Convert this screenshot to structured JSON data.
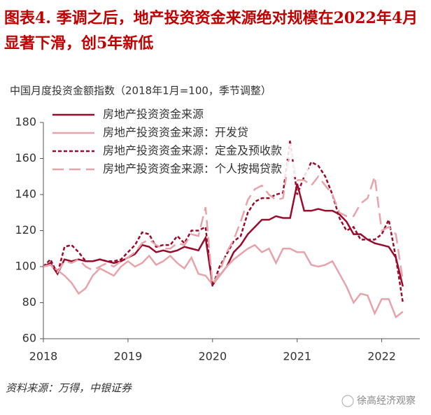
{
  "chart_data": {
    "type": "line",
    "title": "图表4.  季调之后，地产投资资金来源绝对规模在2022年4月显著下滑，创5年新低",
    "subtitle": "中国月度投资金额指数（2018年1月=100，季节调整）",
    "source": "资料来源：万得，中银证券",
    "watermark": "徐高经济观察",
    "legend": "upper left",
    "x": [
      2018.0,
      2018.083,
      2018.167,
      2018.25,
      2018.333,
      2018.417,
      2018.5,
      2018.583,
      2018.667,
      2018.75,
      2018.833,
      2018.917,
      2019.0,
      2019.083,
      2019.167,
      2019.25,
      2019.333,
      2019.417,
      2019.5,
      2019.583,
      2019.667,
      2019.75,
      2019.833,
      2019.917,
      2020.0,
      2020.083,
      2020.167,
      2020.25,
      2020.333,
      2020.417,
      2020.5,
      2020.583,
      2020.667,
      2020.75,
      2020.833,
      2020.917,
      2021.0,
      2021.083,
      2021.167,
      2021.25,
      2021.333,
      2021.417,
      2021.5,
      2021.583,
      2021.667,
      2021.75,
      2021.833,
      2021.917,
      2022.0,
      2022.083,
      2022.167,
      2022.25
    ],
    "xlim": [
      2018,
      2022.45
    ],
    "xticks": [
      2018,
      2019,
      2020,
      2021,
      2022
    ],
    "ylim": [
      60,
      180
    ],
    "yticks": [
      60,
      80,
      100,
      120,
      140,
      160,
      180
    ],
    "series": [
      {
        "name": "房地产投资资金来源",
        "color": "#9b0a2b",
        "dash": "solid",
        "values": [
          100,
          102,
          96,
          104,
          103,
          104,
          103,
          103,
          104,
          103,
          102,
          103,
          105,
          107,
          112,
          111,
          108,
          109,
          108,
          109,
          111,
          110,
          109,
          116,
          90,
          95,
          100,
          108,
          112,
          118,
          122,
          126,
          126,
          128,
          127,
          127,
          146,
          131,
          131,
          132,
          131,
          131,
          129,
          125,
          118,
          118,
          115,
          113,
          112,
          111,
          105,
          89
        ]
      },
      {
        "name": "房地产投资资金来源：开发贷",
        "color": "#e8a3aa",
        "dash": "solid",
        "values": [
          100,
          101,
          98,
          95,
          91,
          85,
          88,
          95,
          99,
          97,
          95,
          100,
          103,
          100,
          102,
          106,
          101,
          103,
          106,
          102,
          99,
          105,
          96,
          95,
          90,
          95,
          100,
          104,
          107,
          110,
          112,
          108,
          110,
          102,
          110,
          110,
          108,
          108,
          101,
          100,
          101,
          103,
          96,
          89,
          80,
          85,
          84,
          74,
          82,
          82,
          72,
          75
        ]
      },
      {
        "name": "房地产投资资金来源：定金及预收款",
        "color": "#9b0a2b",
        "dash": "short",
        "values": [
          100,
          104,
          96,
          111,
          112,
          108,
          103,
          103,
          104,
          103,
          103,
          104,
          108,
          112,
          119,
          118,
          111,
          112,
          112,
          117,
          113,
          120,
          120,
          122,
          89,
          100,
          107,
          114,
          117,
          130,
          136,
          138,
          138,
          140,
          141,
          170,
          140,
          150,
          158,
          156,
          150,
          140,
          127,
          120,
          122,
          115,
          115,
          115,
          118,
          126,
          105,
          80
        ]
      },
      {
        "name": "房地产投资资金来源：个人按揭贷款",
        "color": "#e8a3aa",
        "dash": "long",
        "values": [
          100,
          101,
          97,
          103,
          102,
          104,
          100,
          98,
          100,
          102,
          100,
          103,
          105,
          108,
          113,
          115,
          112,
          110,
          110,
          113,
          112,
          118,
          117,
          133,
          90,
          97,
          108,
          115,
          125,
          137,
          143,
          145,
          140,
          137,
          138,
          165,
          148,
          148,
          145,
          150,
          145,
          140,
          130,
          128,
          128,
          135,
          138,
          150,
          120,
          122,
          118,
          92
        ]
      }
    ]
  }
}
